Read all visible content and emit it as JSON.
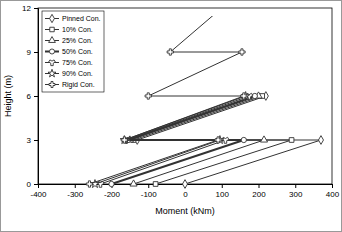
{
  "chart_data": {
    "type": "line",
    "x_label": "Moment (kNm)",
    "y_label": "Height (m)",
    "xlim": [
      -400,
      400
    ],
    "xticks": [
      -400,
      -300,
      -200,
      -100,
      0,
      100,
      200,
      300,
      400
    ],
    "ylim": [
      0,
      12
    ],
    "yticks": [
      0,
      3,
      6,
      9,
      12
    ],
    "grid": false,
    "legend": "top-left",
    "series": [
      {
        "name": "Pinned Con.",
        "color": "#333333",
        "marker": "diamond",
        "x": [
          0,
          370,
          -130,
          220
        ],
        "values": [
          0,
          3,
          3,
          6
        ]
      },
      {
        "name": "10% Con.",
        "color": "#333333",
        "marker": "square",
        "x": [
          -80,
          290,
          -140,
          210
        ],
        "values": [
          0,
          3,
          3,
          6
        ]
      },
      {
        "name": "25% Con.",
        "color": "#333333",
        "marker": "triangle",
        "x": [
          -140,
          215,
          -150,
          200
        ],
        "values": [
          0,
          3,
          3,
          6
        ]
      },
      {
        "name": "50% Con.",
        "color": "#333333",
        "marker": "circle",
        "x": [
          -200,
          160,
          -155,
          190
        ],
        "values": [
          0,
          3,
          3,
          6
        ]
      },
      {
        "name": "75% Con.",
        "color": "#333333",
        "marker": "wye",
        "x": [
          -230,
          110,
          -160,
          175
        ],
        "values": [
          0,
          3,
          3,
          6
        ]
      },
      {
        "name": "90% Con.",
        "color": "#333333",
        "marker": "star",
        "x": [
          -245,
          95,
          -165,
          165
        ],
        "values": [
          0,
          3,
          3,
          6
        ]
      },
      {
        "name": "Rigid Con.",
        "color": "#333333",
        "marker": "cross",
        "x": [
          -260,
          90,
          -165,
          160,
          -100,
          155,
          -40,
          100
        ],
        "values": [
          0,
          3,
          3,
          6,
          6,
          9,
          9,
          12
        ]
      }
    ]
  }
}
